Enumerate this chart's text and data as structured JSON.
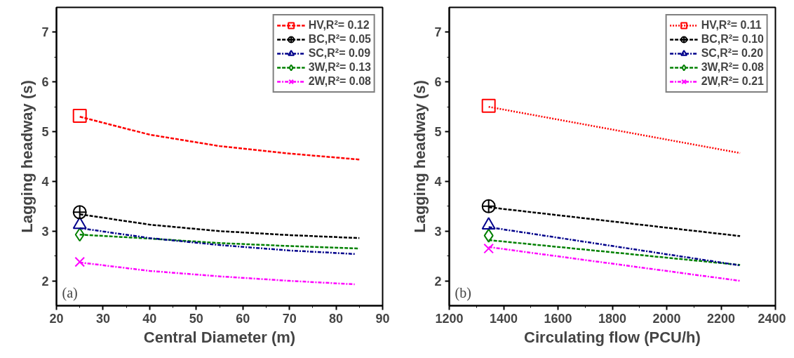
{
  "chart_data": [
    {
      "type": "line",
      "xlabel": "Central Diameter (m)",
      "ylabel": "Lagging headway (s)",
      "annotations": [
        "(a)"
      ],
      "xlim": [
        20,
        90
      ],
      "xticks": [
        20,
        30,
        40,
        50,
        60,
        70,
        80,
        90
      ],
      "ylim": [
        1.5,
        7.5
      ],
      "yticks": [
        2,
        3,
        4,
        5,
        6,
        7
      ],
      "grid": false,
      "legend": "top right",
      "series": [
        {
          "type": "scatter",
          "name": "HV,R²= 0.12",
          "color": "#ff0000",
          "marker": "square",
          "x": [
            25
          ],
          "values": [
            5.32
          ]
        },
        {
          "color": "#ff0000",
          "line_style": "dashed",
          "x": [
            25,
            40,
            55,
            70,
            85
          ],
          "values": [
            5.3,
            4.94,
            4.71,
            4.56,
            4.44
          ]
        },
        {
          "type": "scatter",
          "name": "BC,R²= 0.05",
          "color": "#000000",
          "marker": "circle",
          "x": [
            25
          ],
          "values": [
            3.38
          ]
        },
        {
          "color": "#000000",
          "line_style": "dashed",
          "x": [
            25,
            40,
            55,
            70,
            85
          ],
          "values": [
            3.34,
            3.13,
            3.0,
            2.92,
            2.86
          ]
        },
        {
          "type": "scatter",
          "name": "SC,R²= 0.09",
          "color": "#00008b",
          "marker": "triangle",
          "x": [
            25
          ],
          "values": [
            3.13
          ]
        },
        {
          "color": "#00008b",
          "line_style": "dashdot",
          "x": [
            25,
            40,
            55,
            70,
            84
          ],
          "values": [
            3.06,
            2.86,
            2.72,
            2.61,
            2.54
          ]
        },
        {
          "type": "scatter",
          "name": "3W,R²= 0.13",
          "color": "#008000",
          "marker": "diamond",
          "x": [
            25
          ],
          "values": [
            2.93
          ]
        },
        {
          "color": "#008000",
          "line_style": "dashed",
          "x": [
            25,
            40,
            55,
            70,
            85
          ],
          "values": [
            2.93,
            2.85,
            2.76,
            2.7,
            2.65
          ]
        },
        {
          "type": "scatter",
          "name": "2W,R²= 0.08",
          "color": "#ff00ff",
          "marker": "cross",
          "x": [
            25
          ],
          "values": [
            2.38
          ]
        },
        {
          "color": "#ff00ff",
          "line_style": "dashdot",
          "x": [
            25,
            40,
            55,
            70,
            84
          ],
          "values": [
            2.37,
            2.2,
            2.09,
            2.0,
            1.93
          ]
        }
      ]
    },
    {
      "type": "line",
      "xlabel": "Circulating flow (PCU/h)",
      "ylabel": "Lagging headway (s)",
      "annotations": [
        "(b)"
      ],
      "xlim": [
        1200,
        2400
      ],
      "xticks": [
        1200,
        1400,
        1600,
        1800,
        2000,
        2200,
        2400
      ],
      "ylim": [
        1.5,
        7.5
      ],
      "yticks": [
        2,
        3,
        4,
        5,
        6,
        7
      ],
      "grid": false,
      "legend": "top right",
      "series": [
        {
          "type": "scatter",
          "name": "HV,R²= 0.11",
          "color": "#ff0000",
          "marker": "square",
          "x": [
            1345
          ],
          "values": [
            5.52
          ]
        },
        {
          "color": "#ff0000",
          "line_style": "dotted",
          "x": [
            1345,
            2270
          ],
          "values": [
            5.5,
            4.57
          ]
        },
        {
          "type": "scatter",
          "name": "BC,R²= 0.10",
          "color": "#000000",
          "marker": "circle",
          "x": [
            1345
          ],
          "values": [
            3.5
          ]
        },
        {
          "color": "#000000",
          "line_style": "dashed",
          "x": [
            1345,
            2270
          ],
          "values": [
            3.48,
            2.9
          ]
        },
        {
          "type": "scatter",
          "name": "SC,R²= 0.20",
          "color": "#00008b",
          "marker": "triangle",
          "x": [
            1345
          ],
          "values": [
            3.12
          ]
        },
        {
          "color": "#00008b",
          "line_style": "dashdot",
          "x": [
            1345,
            2270
          ],
          "values": [
            3.08,
            2.31
          ]
        },
        {
          "type": "scatter",
          "name": "3W,R²= 0.08",
          "color": "#008000",
          "marker": "diamond",
          "x": [
            1345
          ],
          "values": [
            2.91
          ]
        },
        {
          "color": "#008000",
          "line_style": "dashed",
          "x": [
            1345,
            2270
          ],
          "values": [
            2.82,
            2.32
          ]
        },
        {
          "type": "scatter",
          "name": "2W,R²= 0.21",
          "color": "#ff00ff",
          "marker": "cross",
          "x": [
            1345
          ],
          "values": [
            2.65
          ]
        },
        {
          "color": "#ff00ff",
          "line_style": "dashdot",
          "x": [
            1345,
            2270
          ],
          "values": [
            2.68,
            2.0
          ]
        }
      ]
    }
  ]
}
